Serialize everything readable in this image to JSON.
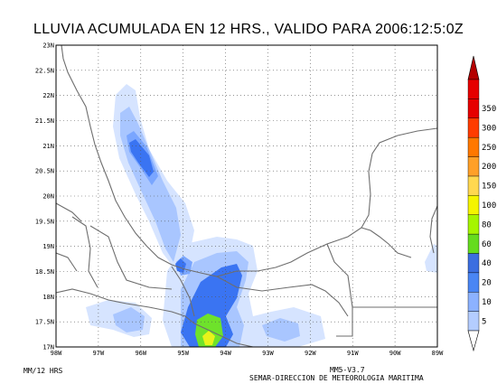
{
  "title": "LLUVIA ACUMULADA EN 12 HRS., VALIDO PARA 2006:12:5:0Z",
  "units_label": "MM/12 HRS",
  "model_label": "MM5-V3.7",
  "credit_label": "SEMAR-DIRECCION DE METEOROLOGIA MARITIMA",
  "map": {
    "lon_range": [
      -98,
      -89
    ],
    "lat_range": [
      17,
      23
    ],
    "lon_labels": [
      "98W",
      "97W",
      "96W",
      "95W",
      "94W",
      "93W",
      "92W",
      "91W",
      "90W",
      "89W"
    ],
    "lat_labels": [
      "17N",
      "17.5N",
      "18N",
      "18.5N",
      "19N",
      "19.5N",
      "20N",
      "20.5N",
      "21N",
      "21.5N",
      "22N",
      "22.5N",
      "23N"
    ],
    "grid": "dotted"
  },
  "colorbar": {
    "levels": [
      "5",
      "10",
      "20",
      "40",
      "60",
      "80",
      "100",
      "150",
      "200",
      "250",
      "300",
      "350"
    ],
    "colors": [
      "#e1ecff",
      "#b4cdff",
      "#8cb2ff",
      "#4a86f4",
      "#3c6ee0",
      "#65dc1e",
      "#a6f500",
      "#f5f500",
      "#ffd850",
      "#ffa028",
      "#ff7800",
      "#ff3c00",
      "#e60000",
      "#b40000"
    ]
  },
  "rain_colors": {
    "light": "#d6e4ff",
    "light2": "#a9c6ff",
    "mid": "#7aa6ff",
    "blue": "#3a74f2",
    "green": "#6ee22b",
    "yellow": "#e8f31a"
  }
}
